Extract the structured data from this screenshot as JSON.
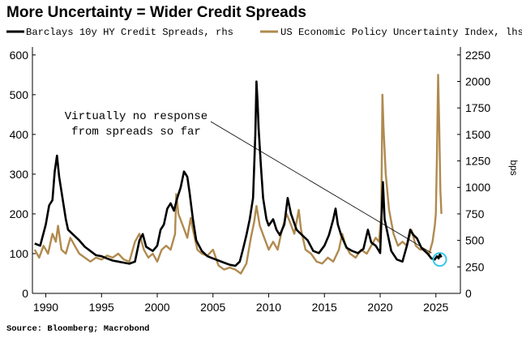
{
  "chart_data": {
    "type": "line",
    "title": "More Uncertainty = Wider Credit Spreads",
    "source": "Source: Bloomberg; Macrobond",
    "annotation": [
      "Virtually no response",
      "from spreads so far"
    ],
    "x_ticks": [
      "1990",
      "1995",
      "2000",
      "2005",
      "2010",
      "2015",
      "2020",
      "2025"
    ],
    "xlim": [
      1988.8,
      2027.2
    ],
    "left_axis": {
      "ylim": [
        0,
        620
      ],
      "ticks": [
        0,
        100,
        200,
        300,
        400,
        500,
        600
      ]
    },
    "right_axis": {
      "label": "bps",
      "ylim": [
        0,
        2325
      ],
      "ticks": [
        0,
        250,
        500,
        750,
        1000,
        1250,
        1500,
        1750,
        2000,
        2250
      ]
    },
    "grid": false,
    "legend_position": "top",
    "series": [
      {
        "name": "Barclays 10y HY Credit Spreads, rhs",
        "color": "#000000",
        "axis": "right",
        "x": [
          1989.0,
          1989.5,
          1990.0,
          1990.3,
          1990.6,
          1990.8,
          1991.0,
          1991.2,
          1991.5,
          1991.8,
          1992.0,
          1992.5,
          1993.0,
          1993.5,
          1994.0,
          1994.5,
          1995.0,
          1995.5,
          1996.0,
          1996.5,
          1997.0,
          1997.5,
          1998.0,
          1998.4,
          1998.7,
          1999.0,
          1999.3,
          1999.6,
          2000.0,
          2000.3,
          2000.6,
          2000.9,
          2001.2,
          2001.5,
          2001.8,
          2002.1,
          2002.4,
          2002.7,
          2002.9,
          2003.2,
          2003.5,
          2004.0,
          2004.5,
          2005.0,
          2005.5,
          2006.0,
          2006.5,
          2007.0,
          2007.4,
          2007.7,
          2008.0,
          2008.3,
          2008.6,
          2008.8,
          2008.9,
          2009.0,
          2009.1,
          2009.3,
          2009.5,
          2009.8,
          2010.0,
          2010.4,
          2010.7,
          2011.0,
          2011.4,
          2011.7,
          2012.0,
          2012.5,
          2013.0,
          2013.5,
          2014.0,
          2014.5,
          2015.0,
          2015.4,
          2015.8,
          2016.0,
          2016.2,
          2016.5,
          2017.0,
          2017.5,
          2018.0,
          2018.5,
          2018.9,
          2019.2,
          2019.6,
          2019.9,
          2020.0,
          2020.15,
          2020.25,
          2020.4,
          2020.7,
          2021.0,
          2021.5,
          2022.0,
          2022.4,
          2022.7,
          2023.0,
          2023.3,
          2023.7,
          2024.0,
          2024.3,
          2024.6,
          2024.9,
          2025.1,
          2025.25,
          2025.35,
          2025.5
        ],
        "y": [
          470,
          450,
          650,
          830,
          880,
          1150,
          1300,
          1100,
          900,
          700,
          600,
          550,
          500,
          440,
          400,
          360,
          350,
          330,
          310,
          300,
          290,
          280,
          300,
          500,
          560,
          440,
          420,
          400,
          450,
          600,
          650,
          800,
          850,
          780,
          900,
          1000,
          1150,
          1100,
          950,
          700,
          500,
          400,
          350,
          330,
          310,
          290,
          270,
          260,
          300,
          420,
          550,
          700,
          900,
          1500,
          2000,
          1800,
          1550,
          1200,
          900,
          700,
          640,
          700,
          600,
          550,
          650,
          900,
          750,
          600,
          550,
          500,
          400,
          380,
          450,
          550,
          700,
          800,
          650,
          550,
          430,
          400,
          380,
          420,
          600,
          480,
          450,
          400,
          380,
          800,
          1050,
          700,
          550,
          400,
          320,
          300,
          450,
          600,
          550,
          520,
          430,
          400,
          370,
          330,
          320,
          350,
          330,
          370,
          340
        ],
        "end_marker": {
          "x": 2025.35,
          "y": 320
        }
      },
      {
        "name": "US Economic Policy Uncertainty Index, lhs",
        "color": "#b08a4f",
        "axis": "left",
        "x": [
          1989.0,
          1989.4,
          1989.8,
          1990.2,
          1990.6,
          1990.9,
          1991.1,
          1991.4,
          1991.8,
          1992.2,
          1992.6,
          1993.0,
          1993.5,
          1994.0,
          1994.5,
          1995.0,
          1995.5,
          1996.0,
          1996.5,
          1997.0,
          1997.5,
          1998.0,
          1998.4,
          1998.8,
          1999.2,
          1999.6,
          2000.0,
          2000.4,
          2000.8,
          2001.2,
          2001.6,
          2001.7,
          2001.9,
          2002.3,
          2002.7,
          2003.0,
          2003.2,
          2003.6,
          2004.0,
          2004.5,
          2005.0,
          2005.5,
          2006.0,
          2006.5,
          2007.0,
          2007.5,
          2008.0,
          2008.4,
          2008.7,
          2008.9,
          2009.2,
          2009.6,
          2010.0,
          2010.4,
          2010.8,
          2011.2,
          2011.6,
          2011.9,
          2012.3,
          2012.7,
          2012.9,
          2013.3,
          2013.8,
          2014.3,
          2014.8,
          2015.3,
          2015.8,
          2016.3,
          2016.6,
          2016.9,
          2017.3,
          2017.8,
          2018.3,
          2018.8,
          2019.2,
          2019.6,
          2019.9,
          2020.1,
          2020.2,
          2020.3,
          2020.5,
          2020.8,
          2021.2,
          2021.6,
          2022.0,
          2022.4,
          2022.8,
          2023.2,
          2023.6,
          2024.0,
          2024.4,
          2024.7,
          2024.9,
          2025.0,
          2025.1,
          2025.2,
          2025.3,
          2025.4,
          2025.5
        ],
        "y": [
          110,
          90,
          120,
          100,
          150,
          130,
          170,
          110,
          100,
          140,
          120,
          100,
          90,
          80,
          90,
          85,
          95,
          90,
          100,
          85,
          80,
          130,
          150,
          110,
          90,
          100,
          80,
          110,
          120,
          110,
          150,
          250,
          200,
          170,
          140,
          190,
          160,
          110,
          100,
          95,
          110,
          70,
          60,
          65,
          60,
          50,
          75,
          140,
          180,
          220,
          170,
          140,
          110,
          130,
          110,
          160,
          200,
          180,
          150,
          210,
          160,
          110,
          100,
          80,
          75,
          90,
          80,
          110,
          150,
          120,
          100,
          90,
          110,
          100,
          120,
          140,
          130,
          200,
          500,
          420,
          300,
          210,
          150,
          120,
          130,
          120,
          160,
          120,
          110,
          110,
          100,
          130,
          170,
          200,
          350,
          550,
          420,
          260,
          200
        ]
      }
    ]
  }
}
